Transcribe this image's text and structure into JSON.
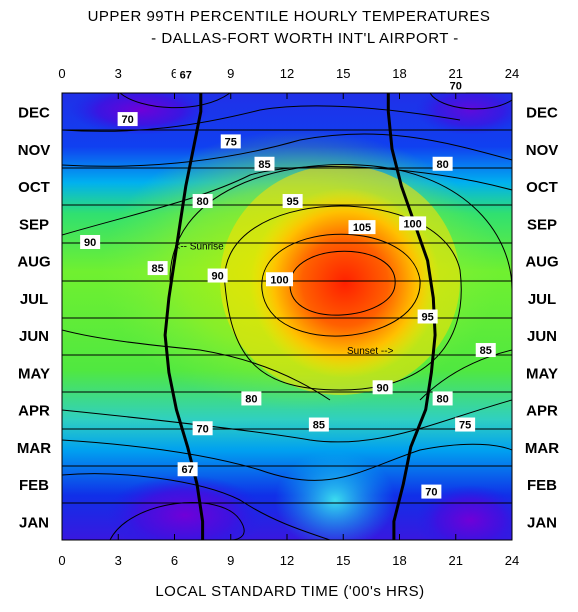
{
  "chart_data": {
    "type": "heatmap",
    "title": "UPPER 99TH PERCENTILE HOURLY TEMPERATURES",
    "subtitle": "- DALLAS-FORT WORTH INT'L AIRPORT -",
    "xlabel": "LOCAL STANDARD TIME ('00's HRS)",
    "x_ticks": [
      "0",
      "3",
      "6",
      "9",
      "12",
      "15",
      "18",
      "21",
      "24"
    ],
    "xlim": [
      0,
      24
    ],
    "months": [
      "JAN",
      "FEB",
      "MAR",
      "APR",
      "MAY",
      "JUN",
      "JUL",
      "AUG",
      "SEP",
      "OCT",
      "NOV",
      "DEC"
    ],
    "contour_levels": [
      67,
      70,
      75,
      80,
      85,
      90,
      95,
      100,
      105
    ],
    "contour_labels": [
      {
        "text": "67",
        "hour": 6.6,
        "month": 12.5
      },
      {
        "text": "70",
        "hour": 3.5,
        "month": 11.3
      },
      {
        "text": "70",
        "hour": 21.0,
        "month": 12.2
      },
      {
        "text": "75",
        "hour": 9.0,
        "month": 10.7
      },
      {
        "text": "80",
        "hour": 20.3,
        "month": 10.1
      },
      {
        "text": "85",
        "hour": 10.8,
        "month": 10.1
      },
      {
        "text": "80",
        "hour": 7.5,
        "month": 9.1
      },
      {
        "text": "95",
        "hour": 12.3,
        "month": 9.1
      },
      {
        "text": "105",
        "hour": 16.0,
        "month": 8.4
      },
      {
        "text": "100",
        "hour": 18.7,
        "month": 8.5
      },
      {
        "text": "90",
        "hour": 1.5,
        "month": 8.0
      },
      {
        "text": "85",
        "hour": 5.1,
        "month": 7.3
      },
      {
        "text": "90",
        "hour": 8.3,
        "month": 7.1
      },
      {
        "text": "100",
        "hour": 11.6,
        "month": 7.0
      },
      {
        "text": "95",
        "hour": 19.5,
        "month": 6.0
      },
      {
        "text": "85",
        "hour": 22.6,
        "month": 5.1
      },
      {
        "text": "90",
        "hour": 17.1,
        "month": 4.1
      },
      {
        "text": "80",
        "hour": 10.1,
        "month": 3.8
      },
      {
        "text": "80",
        "hour": 20.3,
        "month": 3.8
      },
      {
        "text": "85",
        "hour": 13.7,
        "month": 3.1
      },
      {
        "text": "75",
        "hour": 21.5,
        "month": 3.1
      },
      {
        "text": "70",
        "hour": 7.5,
        "month": 3.0
      },
      {
        "text": "67",
        "hour": 6.7,
        "month": 1.9
      },
      {
        "text": "70",
        "hour": 19.7,
        "month": 1.3
      }
    ],
    "annotations": [
      {
        "text": "<-- Sunrise",
        "hour": 6.0,
        "month": 7.8
      },
      {
        "text": "Sunset -->",
        "hour": 15.2,
        "month": 5.0
      }
    ],
    "sunrise_hour_by_month": [
      7.5,
      7.2,
      6.7,
      6.1,
      5.7,
      5.5,
      5.7,
      6.0,
      6.3,
      6.6,
      7.0,
      7.4
    ],
    "sunset_hour_by_month": [
      17.7,
      18.2,
      18.6,
      19.4,
      19.7,
      19.9,
      19.8,
      19.5,
      18.8,
      18.1,
      17.6,
      17.4
    ],
    "colorscale": [
      "#6a00d8",
      "#1020e8",
      "#00c8f0",
      "#30e070",
      "#b8f000",
      "#ffd000",
      "#ff6000",
      "#ff2000"
    ]
  }
}
